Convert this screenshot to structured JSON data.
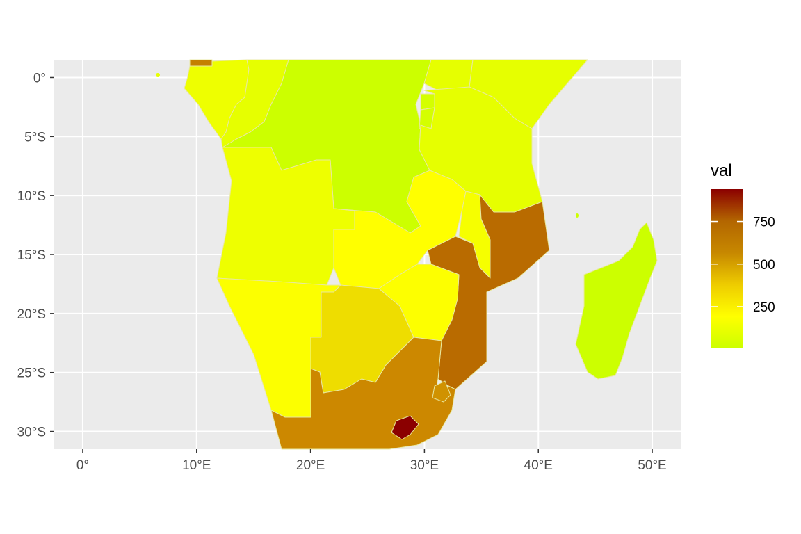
{
  "map": {
    "x_ticks": [
      {
        "value": 0,
        "label": "0°"
      },
      {
        "value": 10,
        "label": "10°E"
      },
      {
        "value": 20,
        "label": "20°E"
      },
      {
        "value": 30,
        "label": "30°E"
      },
      {
        "value": 40,
        "label": "40°E"
      },
      {
        "value": 50,
        "label": "50°E"
      }
    ],
    "y_ticks": [
      {
        "value": 0,
        "label": "0°"
      },
      {
        "value": -5,
        "label": "5°S"
      },
      {
        "value": -10,
        "label": "10°S"
      },
      {
        "value": -15,
        "label": "15°S"
      },
      {
        "value": -20,
        "label": "20°S"
      },
      {
        "value": -25,
        "label": "25°S"
      },
      {
        "value": -30,
        "label": "30°S"
      }
    ],
    "xlim": [
      -2.5,
      52.5
    ],
    "ylim": [
      -31.5,
      1.5
    ],
    "panel_background": "#ebebeb",
    "grid_color": "#ffffff"
  },
  "legend": {
    "title": "val",
    "breaks": [
      {
        "value": 750,
        "label": "750"
      },
      {
        "value": 500,
        "label": "500"
      },
      {
        "value": 250,
        "label": "250"
      }
    ],
    "range": [
      5,
      940
    ],
    "colors": [
      "#ccff00",
      "#ffff00",
      "#eecc00",
      "#c78800",
      "#b36600",
      "#8b0000"
    ]
  },
  "regions": [
    {
      "name": "Gabon",
      "val": 120,
      "color": "#eeff00"
    },
    {
      "name": "Congo",
      "val": 80,
      "color": "#e6ff00"
    },
    {
      "name": "DR Congo",
      "val": 10,
      "color": "#ccff00"
    },
    {
      "name": "Uganda",
      "val": 90,
      "color": "#e6ff00"
    },
    {
      "name": "Kenya",
      "val": 90,
      "color": "#e6ff00"
    },
    {
      "name": "Rwanda",
      "val": 40,
      "color": "#d4ff00"
    },
    {
      "name": "Burundi",
      "val": 40,
      "color": "#d4ff00"
    },
    {
      "name": "Tanzania",
      "val": 80,
      "color": "#e6ff00"
    },
    {
      "name": "Angola",
      "val": 130,
      "color": "#eeff00"
    },
    {
      "name": "Zambia",
      "val": 220,
      "color": "#ffff00"
    },
    {
      "name": "Malawi",
      "val": 170,
      "color": "#f6ff00"
    },
    {
      "name": "Mozambique",
      "val": 690,
      "color": "#b96b00"
    },
    {
      "name": "Namibia",
      "val": 200,
      "color": "#fcff00"
    },
    {
      "name": "Botswana",
      "val": 400,
      "color": "#eedd00"
    },
    {
      "name": "Zimbabwe",
      "val": 210,
      "color": "#fdff00"
    },
    {
      "name": "South Africa",
      "val": 560,
      "color": "#cc8800"
    },
    {
      "name": "Eswatini",
      "val": 520,
      "color": "#d09200"
    },
    {
      "name": "Lesotho",
      "val": 930,
      "color": "#8b0000"
    },
    {
      "name": "Madagascar",
      "val": 20,
      "color": "#ccff00"
    },
    {
      "name": "Cameroon edge",
      "val": 620,
      "color": "#c48000"
    }
  ]
}
